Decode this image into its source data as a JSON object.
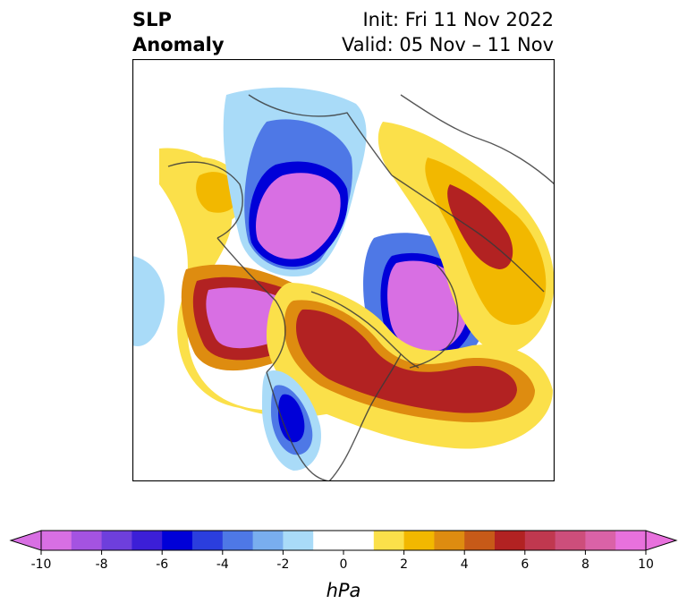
{
  "title": {
    "left_line1": "SLP",
    "left_line2": "Anomaly",
    "right_line1": "Init: Fri 11 Nov 2022",
    "right_line2": "Valid: 05 Nov – 11 Nov"
  },
  "map": {
    "projection": "north-polar-stereographic",
    "features": [
      {
        "kind": "low",
        "region": "arctic-canada-siberia",
        "level": "-10",
        "color": "#d86fe3"
      },
      {
        "kind": "low",
        "region": "north-atlantic-iceland",
        "level": "-10",
        "color": "#d86fe3"
      },
      {
        "kind": "low",
        "region": "western-us",
        "level": "-6",
        "color": "#0000d8"
      },
      {
        "kind": "high",
        "region": "north-pacific-alaska",
        "level": "10",
        "color": "#e871dd"
      },
      {
        "kind": "high",
        "region": "canada-eastern-us",
        "level": "6",
        "color": "#b22222"
      },
      {
        "kind": "high",
        "region": "western-atlantic",
        "level": "6",
        "color": "#b22222"
      },
      {
        "kind": "high",
        "region": "scandinavia-western-russia",
        "level": "6",
        "color": "#b22222"
      }
    ]
  },
  "colorbar": {
    "unit": "hPa",
    "tick_labels": [
      "-10",
      "-8",
      "-6",
      "-4",
      "-2",
      "0",
      "2",
      "4",
      "6",
      "8",
      "10"
    ],
    "bins": [
      {
        "range": "-10 to -9",
        "color": "#d86fe3"
      },
      {
        "range": "-9 to -8",
        "color": "#a453e1"
      },
      {
        "range": "-8 to -7",
        "color": "#6e3fdc"
      },
      {
        "range": "-7 to -6",
        "color": "#3c1fd7"
      },
      {
        "range": "-6 to -5",
        "color": "#0000d8"
      },
      {
        "range": "-5 to -4",
        "color": "#2b3ede"
      },
      {
        "range": "-4 to -3",
        "color": "#4e78e6"
      },
      {
        "range": "-3 to -2",
        "color": "#79aeef"
      },
      {
        "range": "-2 to -1",
        "color": "#a9dbf8"
      },
      {
        "range": "-1 to 0",
        "color": "#ffffff"
      },
      {
        "range": "0 to 1",
        "color": "#ffffff"
      },
      {
        "range": "1 to 2",
        "color": "#fbe04a"
      },
      {
        "range": "2 to 3",
        "color": "#f2b800"
      },
      {
        "range": "3 to 4",
        "color": "#de8c10"
      },
      {
        "range": "4 to 5",
        "color": "#c75a18"
      },
      {
        "range": "5 to 6",
        "color": "#b22222"
      },
      {
        "range": "6 to 7",
        "color": "#c0384f"
      },
      {
        "range": "7 to 8",
        "color": "#cd4e7b"
      },
      {
        "range": "8 to 9",
        "color": "#da62a7"
      },
      {
        "range": "9 to 10",
        "color": "#e871dd"
      }
    ],
    "extend_low_color": "#d86fe3",
    "extend_high_color": "#e871dd"
  }
}
